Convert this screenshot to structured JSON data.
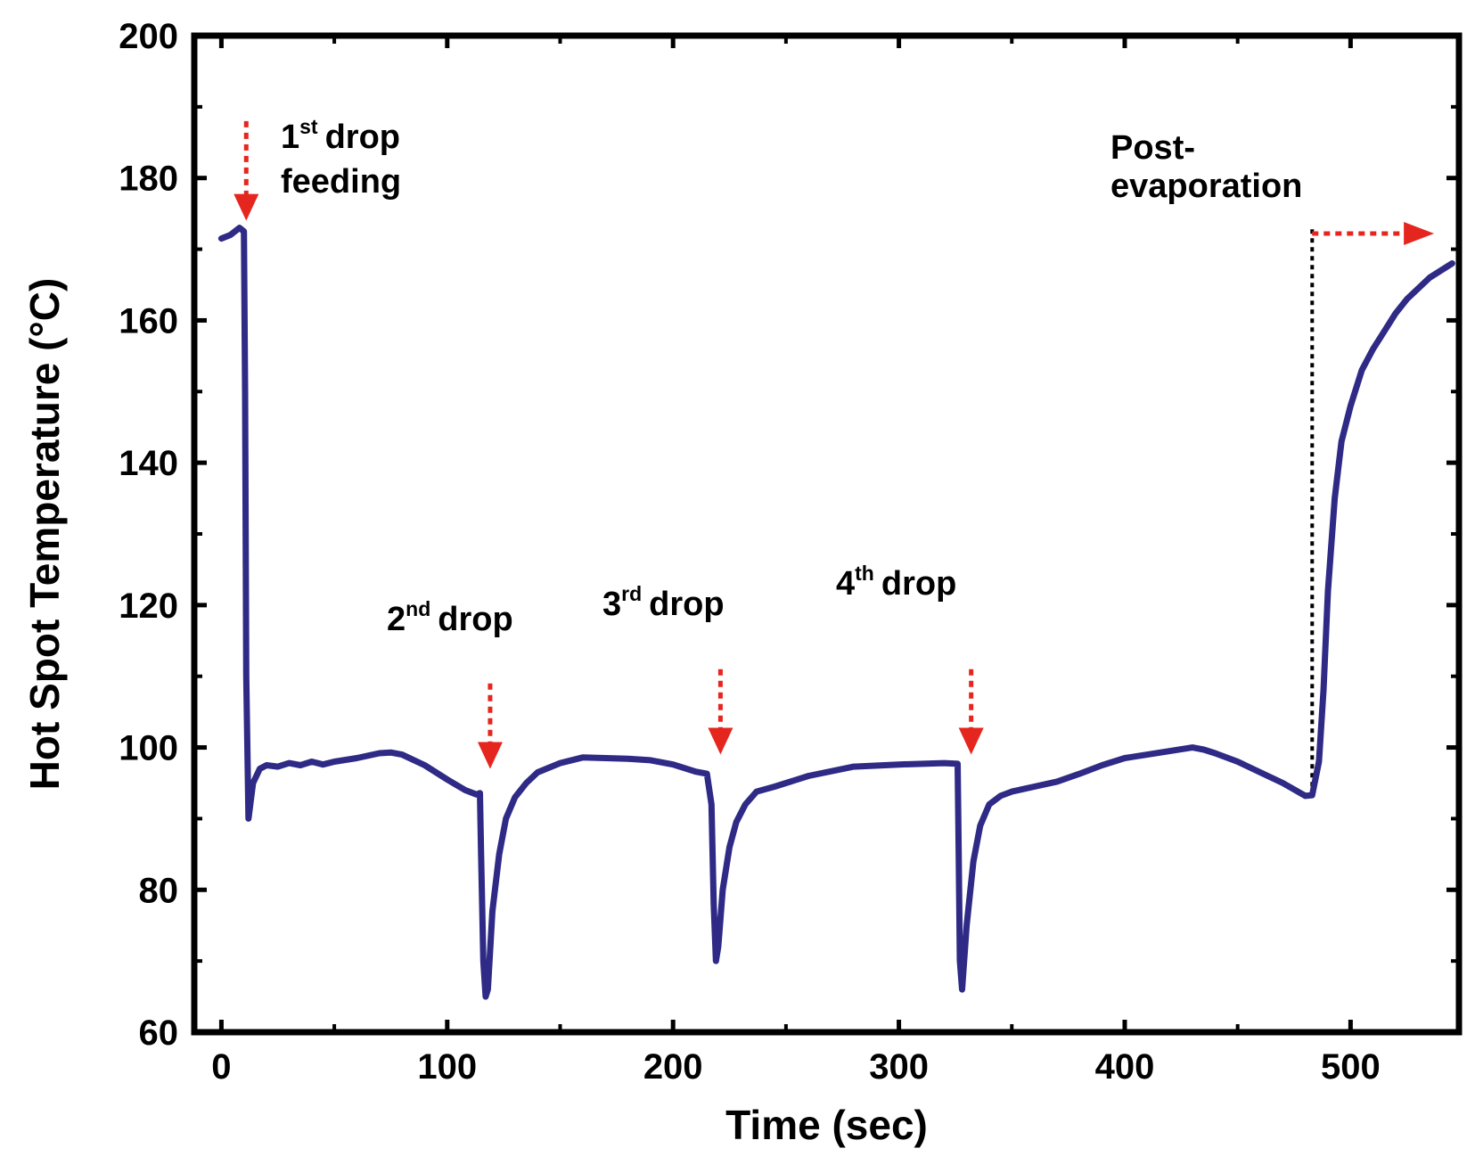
{
  "chart_data": {
    "type": "line",
    "title": "",
    "xlabel": "Time (sec)",
    "ylabel": "Hot Spot Temperature (°C)",
    "xlim": [
      -12,
      548
    ],
    "ylim": [
      60,
      200
    ],
    "x_ticks": [
      0,
      100,
      200,
      300,
      400,
      500
    ],
    "y_ticks": [
      60,
      80,
      100,
      120,
      140,
      160,
      180,
      200
    ],
    "x_tick_labels": [
      "0",
      "100",
      "200",
      "300",
      "400",
      "500"
    ],
    "y_tick_labels": [
      "60",
      "80",
      "100",
      "120",
      "140",
      "160",
      "180",
      "200"
    ],
    "grid": false,
    "series": [
      {
        "name": "Hot spot temperature",
        "color": "#2e2a86",
        "x": [
          0,
          4,
          8,
          10,
          10.5,
          11,
          12,
          14,
          17,
          20,
          25,
          30,
          35,
          40,
          45,
          50,
          60,
          70,
          75,
          80,
          90,
          100,
          108,
          113,
          114.5,
          115,
          116,
          117,
          118,
          120,
          123,
          126,
          130,
          135,
          140,
          150,
          160,
          170,
          180,
          190,
          200,
          210,
          215,
          217,
          218,
          219,
          220,
          222,
          225,
          228,
          232,
          237,
          245,
          260,
          280,
          300,
          320,
          326,
          326.5,
          327,
          328,
          330,
          333,
          336,
          340,
          345,
          350,
          360,
          370,
          380,
          390,
          400,
          410,
          420,
          430,
          435,
          440,
          450,
          460,
          470,
          480,
          483,
          486,
          488,
          490,
          493,
          496,
          500,
          505,
          510,
          515,
          520,
          525,
          530,
          535,
          540,
          545
        ],
        "values": [
          171.5,
          172,
          173,
          172.5,
          150,
          110,
          90,
          95,
          97,
          97.5,
          97.3,
          97.8,
          97.5,
          98,
          97.6,
          98,
          98.5,
          99.2,
          99.3,
          99,
          97.5,
          95.5,
          94,
          93.4,
          93.6,
          85,
          70,
          65,
          66,
          77,
          85,
          90,
          93,
          95,
          96.5,
          97.8,
          98.6,
          98.5,
          98.4,
          98.2,
          97.6,
          96.6,
          96.3,
          92,
          78,
          70,
          72,
          80,
          86,
          89.5,
          92,
          93.8,
          94.5,
          96,
          97.3,
          97.6,
          97.8,
          97.7,
          85,
          70,
          66,
          75,
          84,
          89,
          92,
          93.2,
          93.8,
          94.5,
          95.2,
          96.3,
          97.5,
          98.5,
          99,
          99.5,
          100,
          99.7,
          99.2,
          98,
          96.5,
          95,
          93.2,
          93.3,
          98,
          108,
          122,
          135,
          143,
          148,
          153,
          156,
          158.5,
          161,
          163,
          164.5,
          166,
          167,
          168
        ]
      }
    ],
    "annotations": [
      {
        "number": "1",
        "sup": "st",
        "text": "drop",
        "line2": "feeding"
      },
      {
        "number": "2",
        "sup": "nd",
        "text": "drop"
      },
      {
        "number": "3",
        "sup": "rd",
        "text": "drop"
      },
      {
        "number": "4",
        "sup": "th",
        "text": "drop"
      },
      {
        "text": "Post-",
        "line2": "evaporation"
      }
    ],
    "annotation_color": "#e5261f",
    "axis_color": "#000000"
  }
}
